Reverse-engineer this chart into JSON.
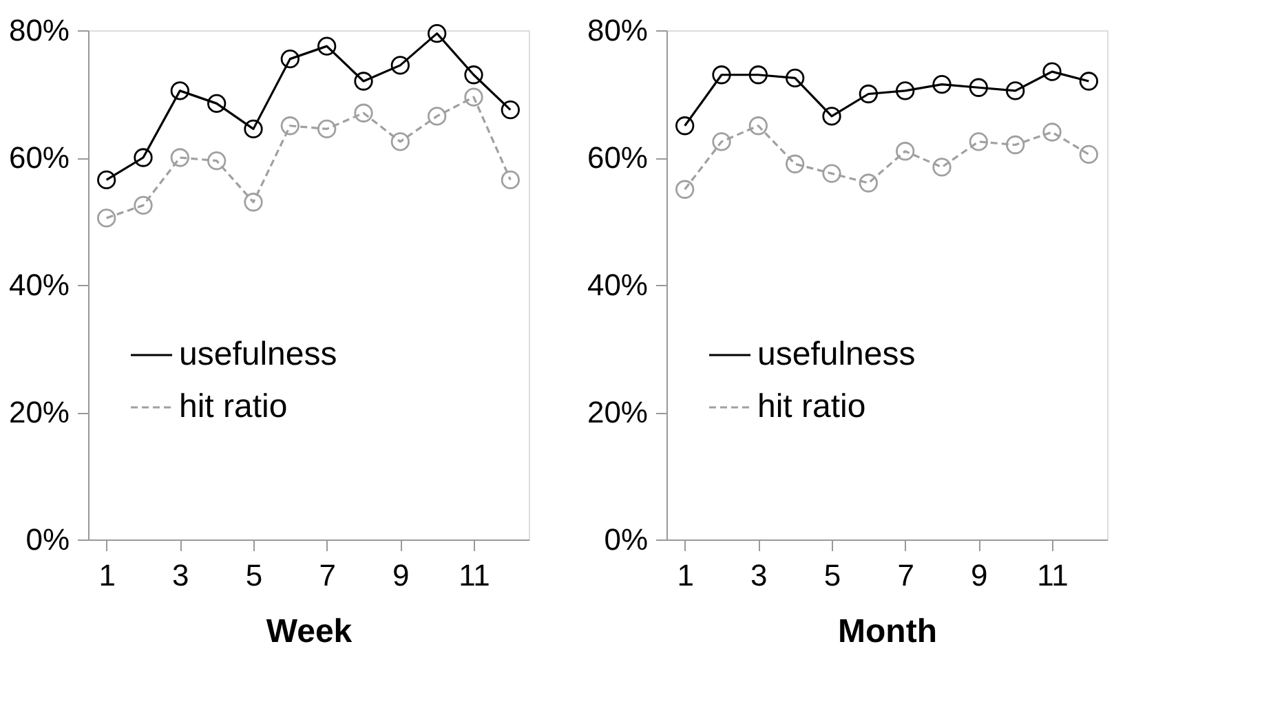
{
  "chart_data": [
    {
      "type": "line",
      "xlabel": "Week",
      "x": [
        1,
        2,
        3,
        4,
        5,
        6,
        7,
        8,
        9,
        10,
        11,
        12
      ],
      "xlim": [
        0.5,
        12.5
      ],
      "xticks": [
        1,
        3,
        5,
        7,
        9,
        11
      ],
      "ylim": [
        0,
        80
      ],
      "yticks": [
        {
          "value": 0,
          "label": "0%"
        },
        {
          "value": 20,
          "label": "20%"
        },
        {
          "value": 40,
          "label": "40%"
        },
        {
          "value": 60,
          "label": "60%"
        },
        {
          "value": 80,
          "label": "80%"
        }
      ],
      "grid": false,
      "legend": "bottom",
      "marker": "circle",
      "series": [
        {
          "name": "usefulness",
          "color": "#000000",
          "line_style": "solid",
          "values": [
            56.5,
            60,
            70.5,
            68.5,
            64.5,
            75.5,
            77.5,
            72,
            74.5,
            79.5,
            73,
            67.5
          ]
        },
        {
          "name": "hit ratio",
          "color": "#a0a0a0",
          "line_style": "dashed",
          "values": [
            50.5,
            52.5,
            60,
            59.5,
            53,
            65,
            64.5,
            67,
            62.5,
            66.5,
            69.5,
            56.5
          ]
        }
      ]
    },
    {
      "type": "line",
      "xlabel": "Month",
      "x": [
        1,
        2,
        3,
        4,
        5,
        6,
        7,
        8,
        9,
        10,
        11,
        12
      ],
      "xlim": [
        0.5,
        12.5
      ],
      "xticks": [
        1,
        3,
        5,
        7,
        9,
        11
      ],
      "ylim": [
        0,
        80
      ],
      "yticks": [
        {
          "value": 0,
          "label": "0%"
        },
        {
          "value": 20,
          "label": "20%"
        },
        {
          "value": 40,
          "label": "40%"
        },
        {
          "value": 60,
          "label": "60%"
        },
        {
          "value": 80,
          "label": "80%"
        }
      ],
      "grid": false,
      "legend": "bottom",
      "marker": "circle",
      "series": [
        {
          "name": "usefulness",
          "color": "#000000",
          "line_style": "solid",
          "values": [
            65,
            73,
            73,
            72.5,
            66.5,
            70,
            70.5,
            71.5,
            71,
            70.5,
            73.5,
            72
          ]
        },
        {
          "name": "hit ratio",
          "color": "#a0a0a0",
          "line_style": "dashed",
          "values": [
            55,
            62.5,
            65,
            59,
            57.5,
            56,
            61,
            58.5,
            62.5,
            62,
            64,
            60.5
          ]
        }
      ]
    }
  ]
}
